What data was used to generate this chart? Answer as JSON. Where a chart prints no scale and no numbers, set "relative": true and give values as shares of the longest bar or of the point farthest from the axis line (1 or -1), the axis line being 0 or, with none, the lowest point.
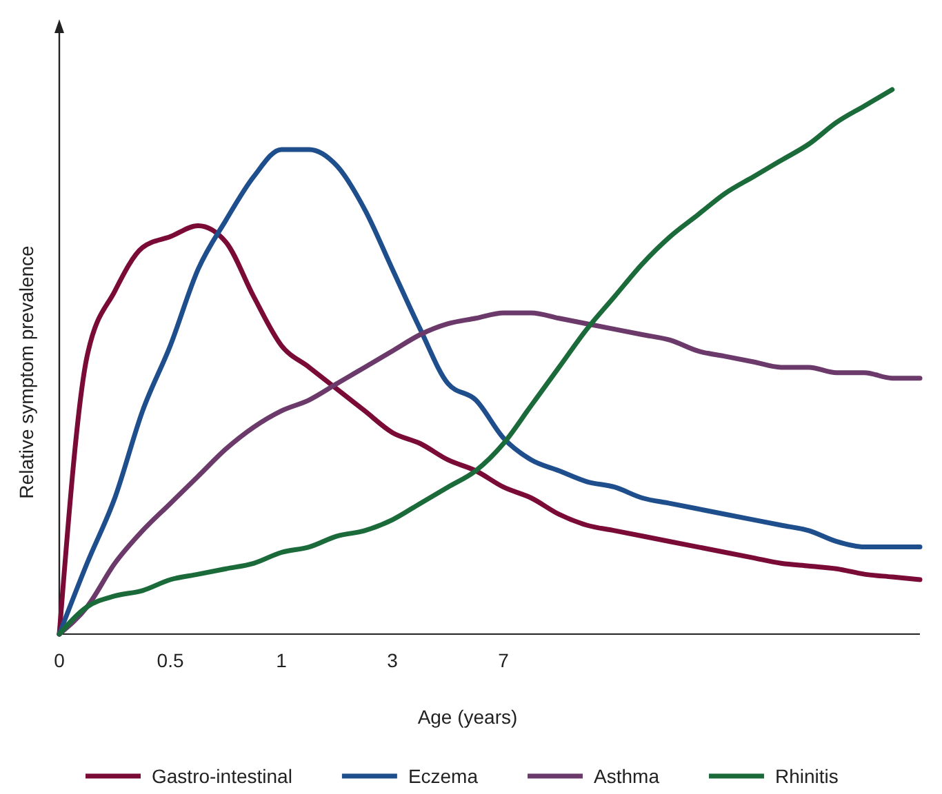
{
  "chart_data": {
    "type": "line",
    "relative": true,
    "xlabel": "Age (years)",
    "ylabel": "Relative symptom prevalence",
    "legend": "bottom",
    "grid": false,
    "marker": "none",
    "line_style": "solid",
    "categories": [
      "0",
      null,
      null,
      null,
      "0.5",
      null,
      null,
      null,
      "1",
      null,
      null,
      null,
      "3",
      null,
      null,
      null,
      "7",
      null,
      null,
      null,
      null,
      null,
      null,
      null,
      null,
      null,
      null,
      null,
      null,
      null,
      null,
      null
    ],
    "series": [
      {
        "name": "Gastro-intestinal",
        "color": "#7a0a36",
        "values": [
          0,
          0.51,
          0.63,
          0.71,
          0.73,
          0.75,
          0.72,
          0.62,
          0.53,
          0.49,
          0.45,
          0.41,
          0.37,
          0.35,
          0.32,
          0.3,
          0.27,
          0.25,
          0.22,
          0.2,
          0.19,
          0.18,
          0.17,
          0.16,
          0.15,
          0.14,
          0.13,
          0.125,
          0.12,
          0.11,
          0.105,
          0.1
        ]
      },
      {
        "name": "Eczema",
        "color": "#1f4e8c",
        "values": [
          0,
          0.13,
          0.25,
          0.41,
          0.53,
          0.67,
          0.76,
          0.84,
          0.89,
          0.89,
          0.86,
          0.78,
          0.67,
          0.56,
          0.46,
          0.43,
          0.36,
          0.32,
          0.3,
          0.28,
          0.27,
          0.25,
          0.24,
          0.23,
          0.22,
          0.21,
          0.2,
          0.19,
          0.17,
          0.16,
          0.16,
          0.16
        ]
      },
      {
        "name": "Asthma",
        "color": "#6b3a6b",
        "values": [
          0,
          0.05,
          0.13,
          0.19,
          0.24,
          0.29,
          0.34,
          0.38,
          0.41,
          0.43,
          0.46,
          0.49,
          0.52,
          0.55,
          0.57,
          0.58,
          0.59,
          0.59,
          0.58,
          0.57,
          0.56,
          0.55,
          0.54,
          0.52,
          0.51,
          0.5,
          0.49,
          0.49,
          0.48,
          0.48,
          0.47,
          0.47
        ]
      },
      {
        "name": "Rhinitis",
        "color": "#1b6b3a",
        "values": [
          0,
          0.05,
          0.07,
          0.08,
          0.1,
          0.11,
          0.12,
          0.13,
          0.15,
          0.16,
          0.18,
          0.19,
          0.21,
          0.24,
          0.27,
          0.3,
          0.35,
          0.42,
          0.49,
          0.56,
          0.62,
          0.68,
          0.73,
          0.77,
          0.81,
          0.84,
          0.87,
          0.9,
          0.94,
          0.97,
          1.0,
          null
        ]
      }
    ]
  }
}
